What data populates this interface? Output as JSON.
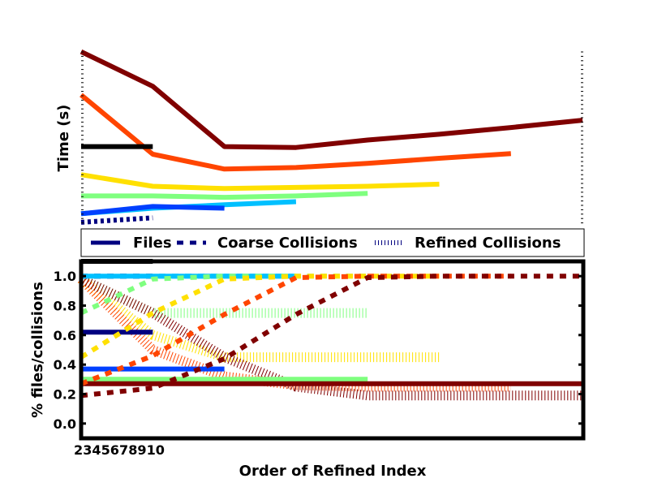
{
  "chart_data": [
    {
      "type": "line",
      "ylabel": "Time (s)",
      "yscale": "log",
      "x": [
        2,
        3,
        4,
        5,
        6,
        7,
        8,
        9
      ],
      "series": [
        {
          "color": "#800000",
          "values": [
            7.5,
            3.6,
            1.0,
            0.98,
            1.15,
            1.3,
            1.5,
            1.75
          ]
        },
        {
          "color": "#ff4500",
          "values": [
            3.0,
            0.85,
            0.62,
            0.64,
            0.7,
            0.78,
            0.86,
            null
          ]
        },
        {
          "color": "#ffe000",
          "values": [
            0.55,
            0.43,
            0.41,
            0.42,
            0.43,
            0.45,
            null,
            null
          ]
        },
        {
          "color": "#7fff7f",
          "values": [
            0.35,
            0.35,
            0.34,
            0.35,
            0.37,
            null,
            null,
            null
          ]
        },
        {
          "color": "#00c0ff",
          "values": [
            0.24,
            0.27,
            0.29,
            0.31,
            null,
            null,
            null,
            null
          ]
        },
        {
          "color": "#0040ff",
          "values": [
            0.24,
            0.28,
            0.27,
            null,
            null,
            null,
            null,
            null
          ]
        },
        {
          "color": "#000000",
          "values": [
            1.0,
            1.0,
            null,
            null,
            null,
            null,
            null,
            null
          ]
        },
        {
          "color": "#000080",
          "style": "dotted",
          "values": [
            0.2,
            0.22,
            null,
            null,
            null,
            null,
            null,
            null
          ]
        }
      ]
    },
    {
      "type": "line",
      "xlabel": "Order of Refined Index",
      "ylabel": "% files/collisions",
      "ylim": [
        -0.1,
        1.1
      ],
      "yticks": [
        "0.0",
        "0.2",
        "0.4",
        "0.6",
        "0.8",
        "1.0"
      ],
      "xtick_text": "2345678910",
      "x": [
        2,
        3,
        4,
        5,
        6,
        7,
        8,
        9
      ],
      "legend": {
        "placement": "top",
        "entries": [
          "Files",
          "Coarse Collisions",
          "Refined Collisions"
        ]
      },
      "files": [
        {
          "color": "#000080",
          "values": [
            0.62,
            0.62
          ]
        },
        {
          "color": "#0040ff",
          "values": [
            0.37,
            0.37,
            0.37
          ]
        },
        {
          "color": "#7fff7f",
          "values": [
            0.3,
            0.3,
            0.3,
            0.3,
            0.3
          ]
        },
        {
          "color": "#800000",
          "values": [
            0.27,
            0.27,
            0.27,
            0.27,
            0.27,
            0.27,
            0.27,
            0.27
          ]
        },
        {
          "color": "#00c0ff",
          "values": [
            1.0,
            1.0,
            1.0,
            1.0
          ]
        },
        {
          "color": "#000000",
          "values": [
            1.1,
            1.1
          ]
        }
      ],
      "coarse_collisions": [
        {
          "color": "#000080",
          "values": [
            1.0,
            1.0
          ]
        },
        {
          "color": "#00c0ff",
          "values": [
            1.0,
            1.0,
            1.0,
            1.0
          ]
        },
        {
          "color": "#7fff7f",
          "values": [
            0.75,
            0.98,
            1.0,
            1.0,
            1.0
          ]
        },
        {
          "color": "#ffe000",
          "values": [
            0.45,
            0.75,
            0.98,
            1.0,
            1.0,
            1.0
          ]
        },
        {
          "color": "#ff4500",
          "values": [
            0.27,
            0.46,
            0.74,
            0.99,
            1.0,
            1.0,
            1.0
          ]
        },
        {
          "color": "#800000",
          "values": [
            0.19,
            0.24,
            0.44,
            0.74,
            0.99,
            1.0,
            1.0,
            1.0
          ]
        }
      ],
      "refined_collisions": [
        {
          "color": "#7fff7f",
          "values": [
            0.98,
            0.75,
            0.75,
            0.75,
            0.75
          ]
        },
        {
          "color": "#ffe000",
          "values": [
            0.98,
            0.6,
            0.45,
            0.45,
            0.45,
            0.45
          ]
        },
        {
          "color": "#ff4500",
          "values": [
            0.98,
            0.5,
            0.32,
            0.26,
            0.25,
            0.25,
            0.25
          ]
        },
        {
          "color": "#800000",
          "values": [
            0.98,
            0.75,
            0.45,
            0.25,
            0.19,
            0.19,
            0.19,
            0.19
          ]
        }
      ]
    }
  ]
}
